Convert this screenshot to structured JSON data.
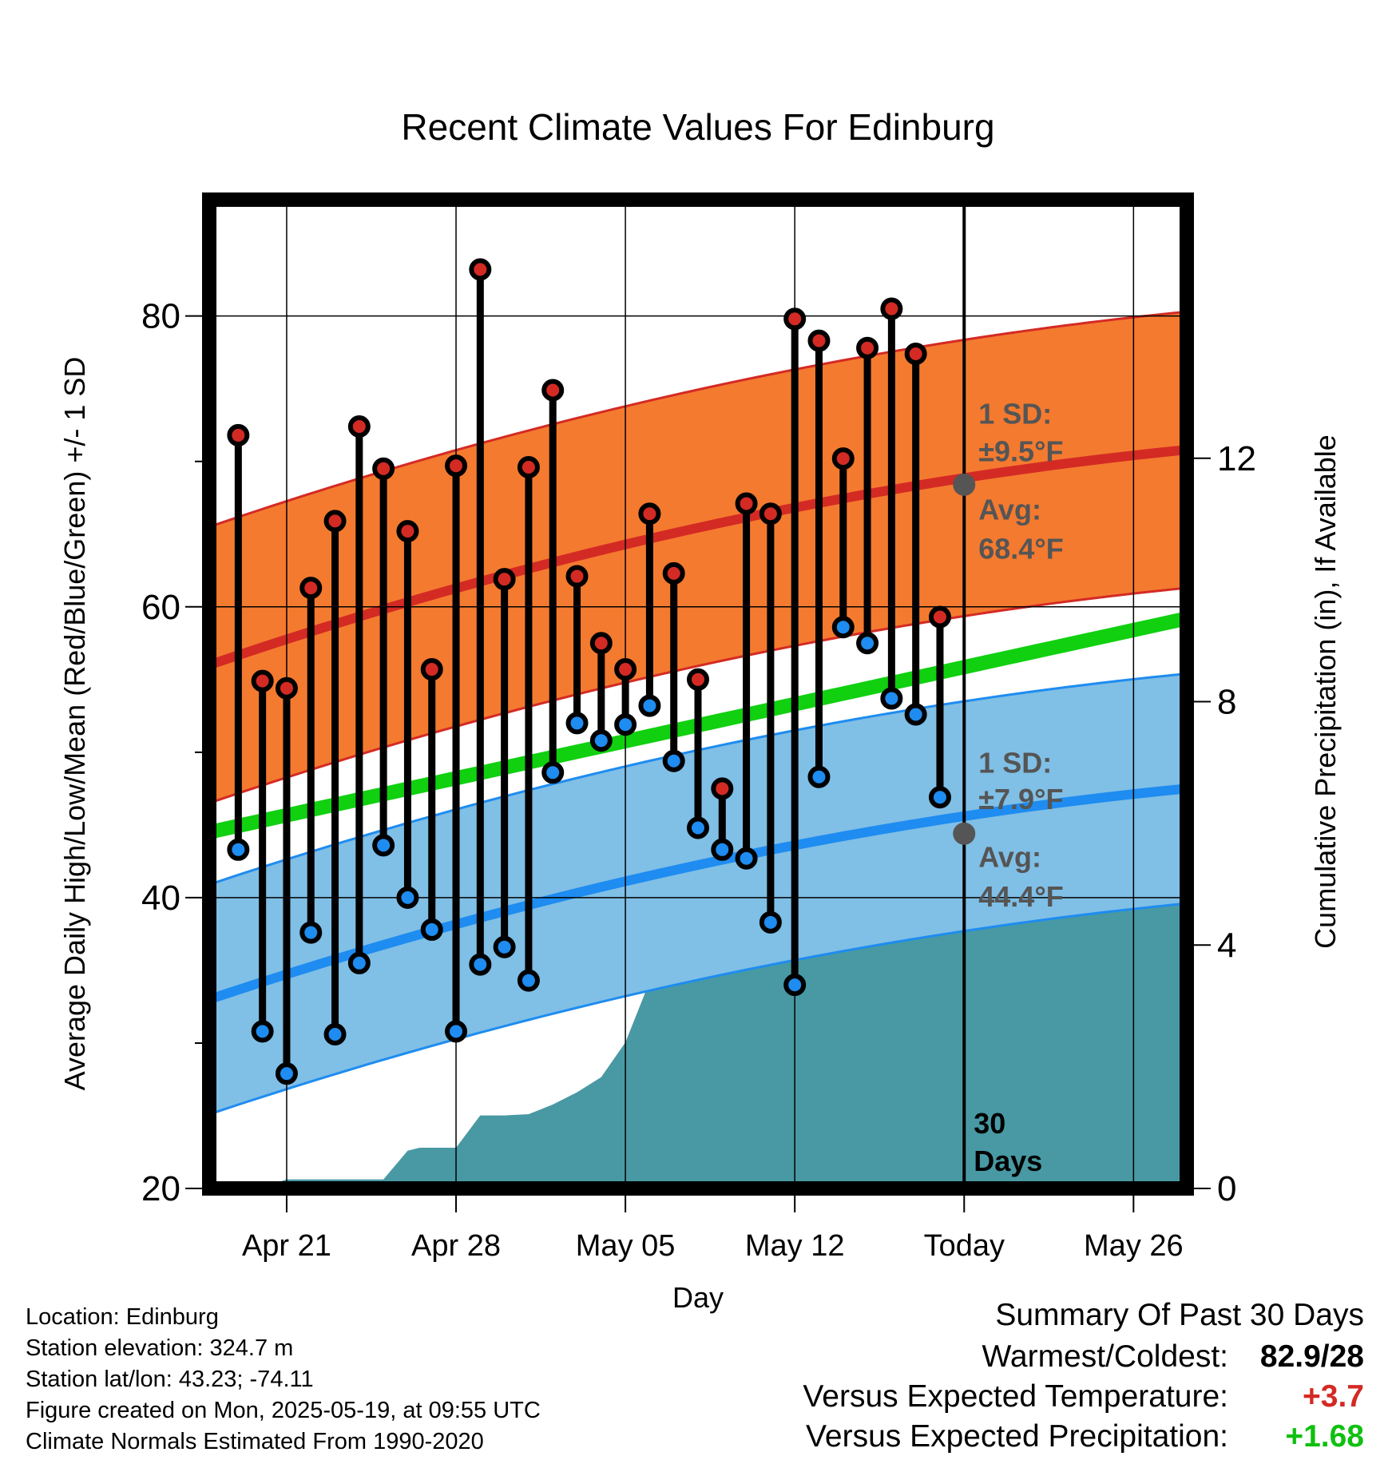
{
  "chart_data": {
    "type": "line",
    "title": "Recent Climate Values For Edinburg",
    "xlabel": "Day",
    "ylabel": "Average Daily High/Low/Mean (Red/Blue/Green) +/- 1 SD",
    "y2label": "Cumulative Precipitation (in), If Available",
    "ylim": [
      20,
      88
    ],
    "y2lim": [
      0,
      16.25
    ],
    "x_tick_labels": [
      {
        "day": 21,
        "label": "Apr 21"
      },
      {
        "day": 28,
        "label": "Apr 28"
      },
      {
        "day": 35,
        "label": "May 05"
      },
      {
        "day": 42,
        "label": "May 12"
      },
      {
        "day": 49,
        "label": "Today"
      },
      {
        "day": 56,
        "label": "May 26"
      }
    ],
    "y_ticks": [
      20,
      40,
      60,
      80
    ],
    "y_minor_ticks": [
      30,
      50,
      70
    ],
    "y2_ticks": [
      0,
      4,
      8,
      12
    ],
    "x_day_note": "day numbers counted from Mar 31 (Apr 21 = day 21)",
    "x_range": [
      17.8,
      58.2
    ],
    "today_day": 49,
    "window_label": "30 Days",
    "observed_days": [
      19,
      20,
      21,
      22,
      23,
      24,
      25,
      26,
      27,
      28,
      29,
      30,
      31,
      32,
      33,
      34,
      35,
      36,
      37,
      38,
      39,
      40,
      41,
      42,
      43,
      44,
      45,
      46,
      47,
      48
    ],
    "observed_highs": [
      71.8,
      54.9,
      54.4,
      61.3,
      65.9,
      72.4,
      69.5,
      65.2,
      55.7,
      69.7,
      83.2,
      61.9,
      69.6,
      74.9,
      62.1,
      57.5,
      55.7,
      66.4,
      62.3,
      55.0,
      47.5,
      67.1,
      66.4,
      79.8,
      78.3,
      70.2,
      77.8,
      80.5,
      77.4,
      59.3
    ],
    "observed_lows": [
      43.3,
      30.8,
      27.9,
      37.6,
      30.6,
      35.5,
      43.6,
      40.0,
      37.8,
      30.8,
      35.4,
      36.6,
      34.3,
      48.6,
      52.0,
      50.8,
      51.9,
      53.2,
      49.4,
      44.8,
      43.3,
      42.7,
      38.3,
      34.0,
      48.3,
      58.6,
      57.5,
      53.7,
      52.6,
      46.9
    ],
    "normal_high": {
      "start": 56.0,
      "end": 70.8,
      "sd": 9.5
    },
    "normal_low": {
      "start": 33.0,
      "end": 47.5,
      "sd": 7.9
    },
    "normal_mean": {
      "start": 44.5,
      "end": 59.2
    },
    "today_high_avg": 68.4,
    "today_low_avg": 44.4,
    "precip_days": [
      20,
      20.5,
      21,
      22,
      23,
      24,
      25,
      26,
      26.5,
      27,
      28,
      29,
      30,
      31,
      31.5,
      32,
      33,
      34,
      35,
      36,
      37,
      38,
      39,
      40,
      41,
      42,
      43,
      44,
      45,
      46,
      47,
      48,
      49,
      58.2
    ],
    "precip_cum": [
      0,
      0.08,
      0.15,
      0.15,
      0.15,
      0.15,
      0.15,
      0.62,
      0.67,
      0.67,
      0.67,
      1.2,
      1.2,
      1.22,
      1.3,
      1.38,
      1.58,
      1.83,
      2.4,
      3.4,
      3.45,
      3.45,
      4.8,
      4.82,
      4.82,
      4.82,
      4.82,
      4.82,
      4.82,
      4.82,
      5.3,
      5.3,
      5.3,
      5.3
    ],
    "annotations": {
      "high_sd_label": "1 SD:",
      "high_sd_value": "±9.5°F",
      "high_avg_label": "Avg:",
      "high_avg_value": "68.4°F",
      "low_sd_label": "1 SD:",
      "low_sd_value": "±7.9°F",
      "low_avg_label": "Avg:",
      "low_avg_value": "44.4°F"
    },
    "colors": {
      "high_band": "#F47A2F",
      "high_line": "#D42A24",
      "low_band": "#80BFE6",
      "low_line": "#1E8CF0",
      "mean_line": "#10D010",
      "precip": "#4899A3",
      "high_marker": "#D42A24",
      "low_marker": "#1E8CF0",
      "today_marker": "#555555",
      "annotation_text": "#555555"
    }
  },
  "footer": {
    "location": "Location: Edinburg",
    "elevation": "Station elevation: 324.7 m",
    "latlon": "Station lat/lon: 43.23; -74.11",
    "created": "Figure created on Mon, 2025-05-19, at 09:55 UTC",
    "normals": "Climate Normals Estimated From 1990-2020"
  },
  "summary": {
    "title": "Summary Of Past 30 Days",
    "warm_cold_label": "Warmest/Coldest:",
    "warm_cold_value": "82.9/28",
    "temp_label": "Versus Expected Temperature:",
    "temp_value": "+3.7",
    "temp_color": "#D42A24",
    "precip_label": "Versus Expected Precipitation:",
    "precip_value": "+1.68",
    "precip_color": "#10C010"
  }
}
